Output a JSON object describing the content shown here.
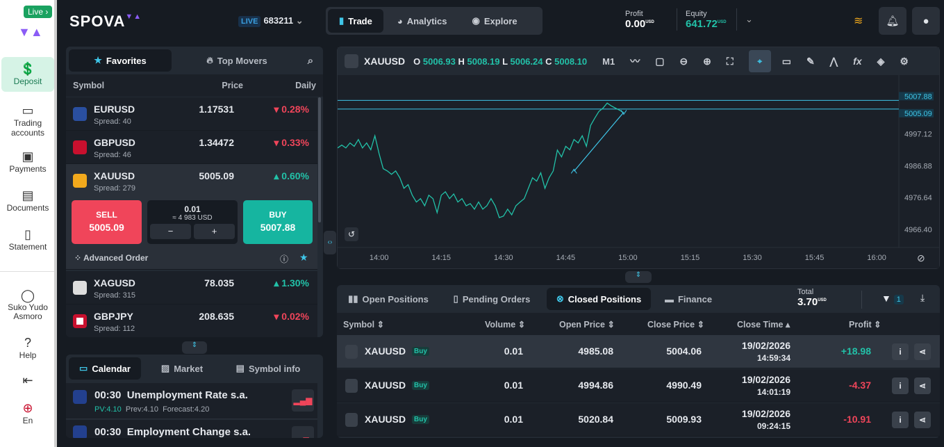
{
  "sidebar": {
    "live_label": "Live",
    "items": [
      {
        "label": "Deposit",
        "icon": "dollar-icon"
      },
      {
        "label": "Trading accounts",
        "icon": "wallet-icon"
      },
      {
        "label": "Payments",
        "icon": "cash-icon"
      },
      {
        "label": "Documents",
        "icon": "id-card-icon"
      },
      {
        "label": "Statement",
        "icon": "document-icon"
      }
    ],
    "user_name": "Suko Yudo Asmoro",
    "help": "Help",
    "language": "En"
  },
  "header": {
    "logo": "SPOVA",
    "account_type": "LIVE",
    "account_number": "683211",
    "tabs": [
      "Trade",
      "Analytics",
      "Explore"
    ],
    "profit_label": "Profit",
    "profit_value": "0.00",
    "profit_currency": "USD",
    "equity_label": "Equity",
    "equity_value": "641.72",
    "equity_currency": "USD"
  },
  "watchlist": {
    "tabs": [
      "Favorites",
      "Top Movers"
    ],
    "columns": [
      "Symbol",
      "Price",
      "Daily"
    ],
    "rows": [
      {
        "symbol": "EURUSD",
        "spread": "Spread: 40",
        "price": "1.17531",
        "daily": "0.28%",
        "dir": "down"
      },
      {
        "symbol": "GBPUSD",
        "spread": "Spread: 46",
        "price": "1.34472",
        "daily": "0.33%",
        "dir": "down"
      },
      {
        "symbol": "XAUUSD",
        "spread": "Spread: 279",
        "price": "5005.09",
        "daily": "0.60%",
        "dir": "up"
      },
      {
        "symbol": "XAGUSD",
        "spread": "Spread: 315",
        "price": "78.035",
        "daily": "1.30%",
        "dir": "up"
      },
      {
        "symbol": "GBPJPY",
        "spread": "Spread: 112",
        "price": "208.635",
        "daily": "0.02%",
        "dir": "down"
      }
    ],
    "trade": {
      "sell_label": "SELL",
      "sell_price": "5005.09",
      "buy_label": "BUY",
      "buy_price": "5007.88",
      "volume": "0.01",
      "volume_usd": "≈ 4 983 USD",
      "minus": "−",
      "plus": "+",
      "advanced_order": "Advanced Order"
    }
  },
  "calendar": {
    "tabs": [
      "Calendar",
      "Market",
      "Symbol info"
    ],
    "events": [
      {
        "time": "00:30",
        "title": "Unemployment Rate s.a.",
        "pv": "PV:4.10",
        "prev": "Prev:4.10",
        "forecast": "Forecast:4.20"
      },
      {
        "time": "00:30",
        "title": "Employment Change s.a."
      }
    ]
  },
  "chart": {
    "symbol": "XAUUSD",
    "o_label": "O",
    "o": "5006.93",
    "h_label": "H",
    "h": "5008.19",
    "l_label": "L",
    "l": "5006.24",
    "c_label": "C",
    "c": "5008.10",
    "timeframe": "M1"
  },
  "chart_data": {
    "type": "line",
    "ylim": [
      4960.6,
      5016.0
    ],
    "xlim": [
      "13:50",
      "16:04"
    ],
    "y_ticks": [
      "4997.12",
      "4986.88",
      "4976.64",
      "4966.40"
    ],
    "x_ticks": [
      "14:00",
      "14:15",
      "14:30",
      "14:45",
      "15:00",
      "15:15",
      "15:30",
      "15:45",
      "16:00"
    ],
    "price_lines": [
      {
        "value": "5007.88",
        "color": "#3fc6e8"
      },
      {
        "value": "5005.09",
        "color": "#3fc6e8"
      }
    ],
    "line_color": "#22c1a8",
    "series": [
      [
        "13:50",
        4992.6
      ],
      [
        "13:51",
        4993.5
      ],
      [
        "13:52",
        4992.6
      ],
      [
        "13:53",
        4994.2
      ],
      [
        "13:54",
        4993.1
      ],
      [
        "13:55",
        4995.3
      ],
      [
        "13:56",
        4992.6
      ],
      [
        "13:57",
        4994.2
      ],
      [
        "13:58",
        4992.0
      ],
      [
        "13:59",
        4996.5
      ],
      [
        "14:00",
        4990.8
      ],
      [
        "14:01",
        4985.9
      ],
      [
        "14:02",
        4985.2
      ],
      [
        "14:03",
        4984.1
      ],
      [
        "14:04",
        4985.2
      ],
      [
        "14:05",
        4983.0
      ],
      [
        "14:06",
        4979.6
      ],
      [
        "14:07",
        4980.8
      ],
      [
        "14:08",
        4977.4
      ],
      [
        "14:09",
        4975.2
      ],
      [
        "14:10",
        4976.3
      ],
      [
        "14:11",
        4974.0
      ],
      [
        "14:12",
        4977.4
      ],
      [
        "14:13",
        4976.3
      ],
      [
        "14:14",
        4971.8
      ],
      [
        "14:15",
        4977.4
      ],
      [
        "14:16",
        4978.5
      ],
      [
        "14:17",
        4976.3
      ],
      [
        "14:18",
        4977.8
      ],
      [
        "14:19",
        4975.2
      ],
      [
        "14:20",
        4976.3
      ],
      [
        "14:21",
        4974.0
      ],
      [
        "14:22",
        4974.7
      ],
      [
        "14:23",
        4972.9
      ],
      [
        "14:24",
        4975.2
      ],
      [
        "14:25",
        4972.9
      ],
      [
        "14:26",
        4974.0
      ],
      [
        "14:27",
        4976.3
      ],
      [
        "14:28",
        4974.0
      ],
      [
        "14:29",
        4970.2
      ],
      [
        "14:30",
        4970.7
      ],
      [
        "14:31",
        4972.9
      ],
      [
        "14:32",
        4971.1
      ],
      [
        "14:33",
        4974.0
      ],
      [
        "14:34",
        4975.2
      ],
      [
        "14:35",
        4976.3
      ],
      [
        "14:36",
        4979.6
      ],
      [
        "14:37",
        4983.0
      ],
      [
        "14:38",
        4981.9
      ],
      [
        "14:39",
        4984.6
      ],
      [
        "14:40",
        4979.6
      ],
      [
        "14:41",
        4983.0
      ],
      [
        "14:42",
        4985.2
      ],
      [
        "14:43",
        4991.9
      ],
      [
        "14:44",
        4989.7
      ],
      [
        "14:45",
        4993.1
      ],
      [
        "14:46",
        4992.0
      ],
      [
        "14:47",
        4995.3
      ],
      [
        "14:48",
        4994.2
      ],
      [
        "14:49",
        4996.5
      ],
      [
        "14:50",
        4993.1
      ],
      [
        "14:51",
        4999.8
      ],
      [
        "14:52",
        5002.1
      ],
      [
        "14:53",
        5004.3
      ],
      [
        "14:54",
        5005.4
      ],
      [
        "14:55",
        5007.0
      ],
      [
        "14:56",
        5006.1
      ],
      [
        "14:57",
        5005.4
      ],
      [
        "14:58",
        5004.7
      ],
      [
        "14:59",
        5003.9
      ]
    ],
    "trades": [
      {
        "open_time": "14:47",
        "open_price": 4985.08,
        "close_time": "14:59",
        "close_price": 5004.06
      }
    ]
  },
  "positions": {
    "tabs": [
      "Open Positions",
      "Pending Orders",
      "Closed Positions",
      "Finance"
    ],
    "total_label": "Total",
    "total_value": "3.70",
    "total_currency": "USD",
    "filter_count": "1",
    "columns": [
      "Symbol",
      "Volume",
      "Open Price",
      "Close Price",
      "Close Time",
      "Profit"
    ],
    "rows": [
      {
        "symbol": "XAUUSD",
        "side": "Buy",
        "volume": "0.01",
        "open": "4985.08",
        "close": "5004.06",
        "date": "19/02/2026",
        "time": "14:59:34",
        "profit": "+18.98"
      },
      {
        "symbol": "XAUUSD",
        "side": "Buy",
        "volume": "0.01",
        "open": "4994.86",
        "close": "4990.49",
        "date": "19/02/2026",
        "time": "14:01:19",
        "profit": "-4.37"
      },
      {
        "symbol": "XAUUSD",
        "side": "Buy",
        "volume": "0.01",
        "open": "5020.84",
        "close": "5009.93",
        "date": "19/02/2026",
        "time": "09:24:15",
        "profit": "-10.91"
      }
    ]
  }
}
